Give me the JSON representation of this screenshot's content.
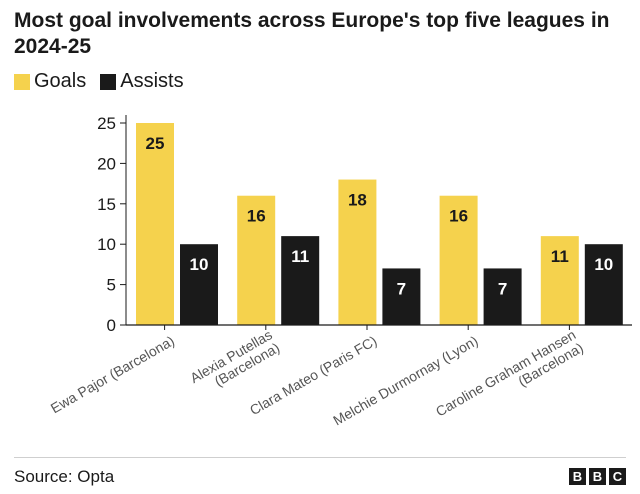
{
  "header": {
    "title": "Most goal involvements across Europe's top five leagues in 2024-25"
  },
  "legend": {
    "items": [
      {
        "label": "Goals",
        "color": "#f5d24d"
      },
      {
        "label": "Assists",
        "color": "#1a1a1a"
      }
    ]
  },
  "footer": {
    "source": "Source: Opta",
    "logo_letters": [
      "B",
      "B",
      "C"
    ]
  },
  "chart_data": {
    "type": "bar",
    "title": "Most goal involvements across Europe's top five leagues in 2024-25",
    "xlabel": "",
    "ylabel": "",
    "ylim": [
      0,
      25
    ],
    "yticks": [
      "0",
      "5",
      "10",
      "15",
      "20",
      "25"
    ],
    "grid": false,
    "legend_position": "top-left",
    "categories": [
      "Ewa Pajor (Barcelona)",
      "Alexia Putellas (Barcelona)",
      "Clara Mateo (Paris FC)",
      "Melchie Durmornay (Lyon)",
      "Caroline Graham Hansen (Barcelona)"
    ],
    "category_lines": [
      [
        "Ewa Pajor (Barcelona)"
      ],
      [
        "Alexia Putellas",
        "(Barcelona)"
      ],
      [
        "Clara Mateo (Paris FC)"
      ],
      [
        "Melchie Durmornay (Lyon)"
      ],
      [
        "Caroline Graham Hansen",
        "(Barcelona)"
      ]
    ],
    "series": [
      {
        "name": "Goals",
        "color": "#f5d24d",
        "label_color": "#1a1a1a",
        "values": [
          25,
          16,
          18,
          16,
          11
        ]
      },
      {
        "name": "Assists",
        "color": "#1a1a1a",
        "label_color": "#ffffff",
        "values": [
          10,
          11,
          7,
          7,
          10
        ]
      }
    ]
  }
}
